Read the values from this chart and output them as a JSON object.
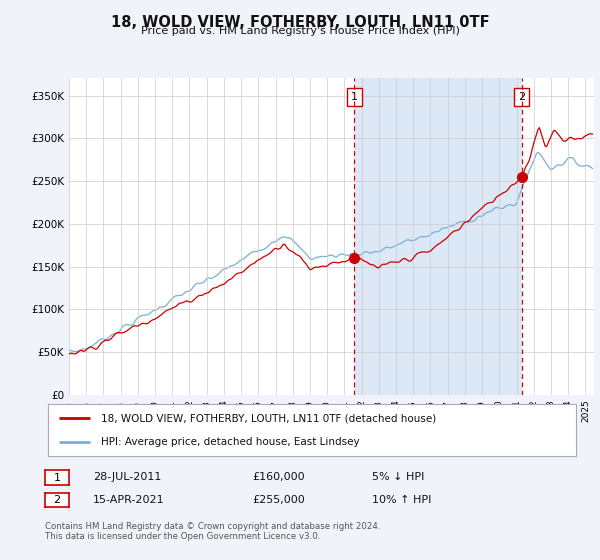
{
  "title": "18, WOLD VIEW, FOTHERBY, LOUTH, LN11 0TF",
  "subtitle": "Price paid vs. HM Land Registry's House Price Index (HPI)",
  "background_color": "#f0f4fa",
  "plot_bg_color": "#ffffff",
  "shaded_region_color": "#dce8f5",
  "ylabel_ticks": [
    "£0",
    "£50K",
    "£100K",
    "£150K",
    "£200K",
    "£250K",
    "£300K",
    "£350K"
  ],
  "ytick_values": [
    0,
    50000,
    100000,
    150000,
    200000,
    250000,
    300000,
    350000
  ],
  "ylim": [
    0,
    370000
  ],
  "xlim_start": 1995.0,
  "xlim_end": 2025.5,
  "sale1_x": 2011.57,
  "sale1_y": 160000,
  "sale2_x": 2021.29,
  "sale2_y": 255000,
  "legend_line1_label": "18, WOLD VIEW, FOTHERBY, LOUTH, LN11 0TF (detached house)",
  "legend_line2_label": "HPI: Average price, detached house, East Lindsey",
  "table_row1": [
    "1",
    "28-JUL-2011",
    "£160,000",
    "5% ↓ HPI"
  ],
  "table_row2": [
    "2",
    "15-APR-2021",
    "£255,000",
    "10% ↑ HPI"
  ],
  "footer": "Contains HM Land Registry data © Crown copyright and database right 2024.\nThis data is licensed under the Open Government Licence v3.0.",
  "line_red_color": "#cc0000",
  "line_blue_color": "#7ab0d4",
  "marker_box_color": "#cc0000",
  "dashed_line_color": "#cc0000",
  "grid_color": "#cccccc",
  "legend_bg": "#ffffff",
  "legend_border": "#aaaaaa"
}
